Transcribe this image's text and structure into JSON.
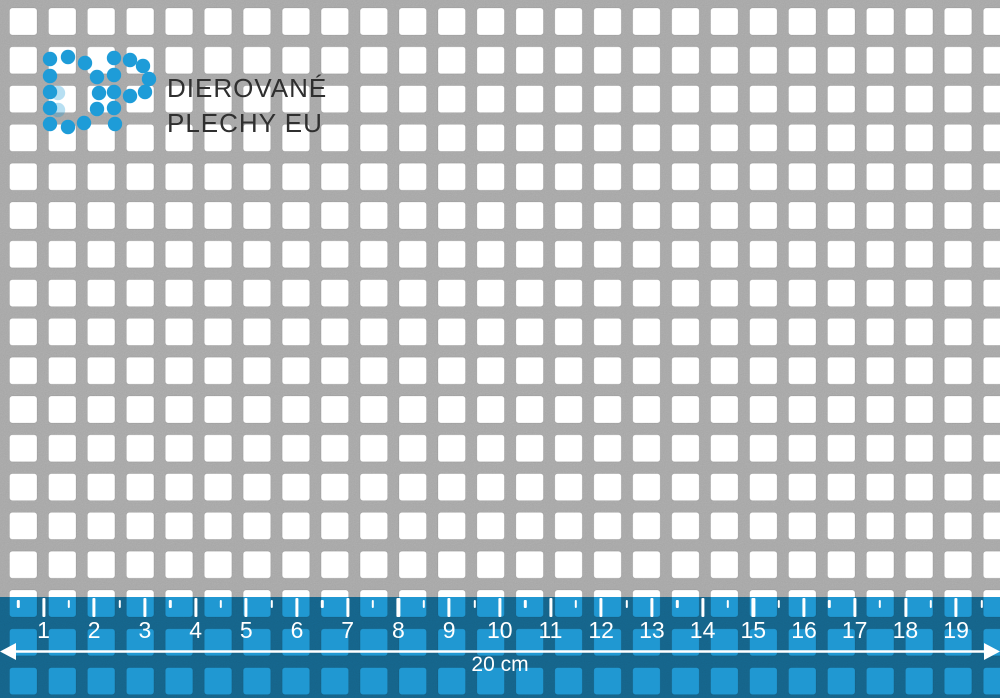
{
  "logo": {
    "line1": "DIEROVANÉ",
    "line2": "PLECHY EU"
  },
  "ruler": {
    "unit_numbers": [
      "1",
      "2",
      "3",
      "4",
      "5",
      "6",
      "7",
      "8",
      "9",
      "10",
      "11",
      "12",
      "13",
      "14",
      "15",
      "16",
      "17",
      "18",
      "19"
    ],
    "total_label": "20 cm"
  },
  "icons": {
    "logo_icon": "dp-dot-matrix-logo",
    "arrow_icon": "double-headed-arrow"
  },
  "colors": {
    "accent_blue": "#2098d2",
    "logo_blue": "#1e9cd8",
    "metal_gray": "#a9a9a9",
    "text_dark": "#2f2f2f",
    "ruler_text": "#ffffff"
  }
}
